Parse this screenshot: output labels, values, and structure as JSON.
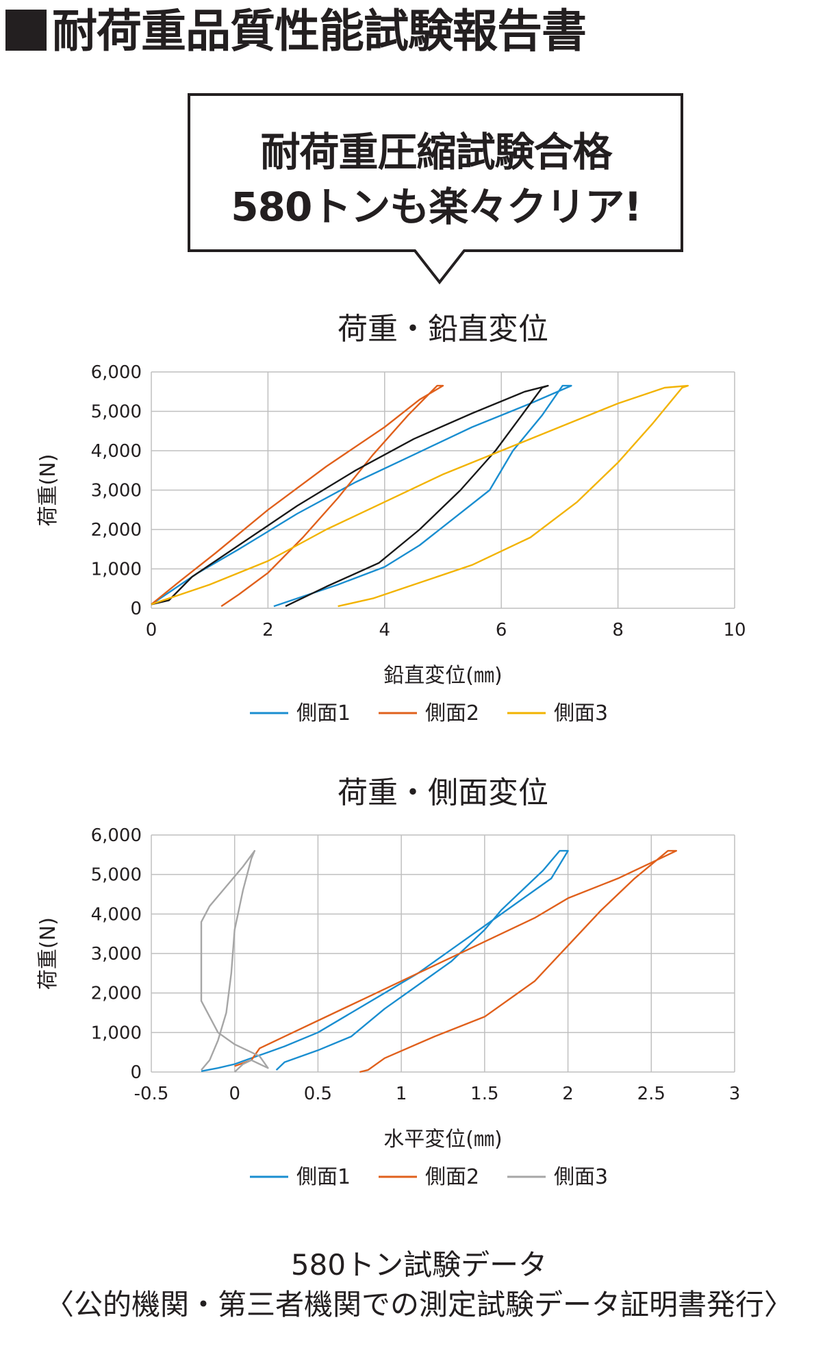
{
  "header": {
    "title": "耐荷重品質性能試験報告書"
  },
  "callout": {
    "line1": "耐荷重圧縮試験合格",
    "line2": "580トンも楽々クリア!"
  },
  "colors": {
    "blue": "#1a8ed0",
    "orange": "#e0601c",
    "gray": "#a6a6a6",
    "yellow": "#f2b300",
    "black": "#1a1a1a",
    "grid": "#bfbfbf"
  },
  "chart_data": [
    {
      "type": "line",
      "title": "荷重・鉛直変位",
      "xlabel": "鉛直変位(㎜)",
      "ylabel": "荷重(N)",
      "xlim": [
        0,
        10
      ],
      "ylim": [
        0,
        6000
      ],
      "x_ticks": [
        "0",
        "2",
        "4",
        "6",
        "8",
        "10"
      ],
      "y_ticks": [
        "0",
        "1,000",
        "2,000",
        "3,000",
        "4,000",
        "5,000",
        "6,000"
      ],
      "grid": true,
      "legend_position": "bottom",
      "series": [
        {
          "name": "側面1",
          "color": "#1a8ed0",
          "legend": true,
          "points": [
            [
              0,
              100
            ],
            [
              0.4,
              500
            ],
            [
              0.8,
              900
            ],
            [
              1.5,
              1500
            ],
            [
              2.5,
              2400
            ],
            [
              3.5,
              3200
            ],
            [
              4.5,
              3900
            ],
            [
              5.5,
              4600
            ],
            [
              6.5,
              5200
            ],
            [
              7.2,
              5650
            ],
            [
              7.05,
              5650
            ],
            [
              6.7,
              4900
            ],
            [
              6.2,
              4000
            ],
            [
              5.8,
              3000
            ],
            [
              5.2,
              2300
            ],
            [
              4.6,
              1600
            ],
            [
              4.0,
              1050
            ],
            [
              3.2,
              600
            ],
            [
              2.1,
              50
            ]
          ]
        },
        {
          "name": "側面2",
          "color": "#e0601c",
          "legend": true,
          "points": [
            [
              0,
              100
            ],
            [
              0.5,
              700
            ],
            [
              1.1,
              1400
            ],
            [
              2.0,
              2500
            ],
            [
              3.0,
              3600
            ],
            [
              4.0,
              4600
            ],
            [
              4.6,
              5300
            ],
            [
              5.0,
              5650
            ],
            [
              4.9,
              5650
            ],
            [
              4.4,
              4900
            ],
            [
              3.8,
              3900
            ],
            [
              3.2,
              2800
            ],
            [
              2.6,
              1800
            ],
            [
              2.0,
              900
            ],
            [
              1.5,
              350
            ],
            [
              1.2,
              50
            ]
          ]
        },
        {
          "name": "側面3",
          "color": "#1a1a1a",
          "legend": false,
          "points": [
            [
              0,
              100
            ],
            [
              0.3,
              200
            ],
            [
              0.7,
              800
            ],
            [
              1.5,
              1600
            ],
            [
              2.5,
              2600
            ],
            [
              3.5,
              3500
            ],
            [
              4.5,
              4300
            ],
            [
              5.5,
              4950
            ],
            [
              6.4,
              5500
            ],
            [
              6.8,
              5650
            ],
            [
              6.7,
              5600
            ],
            [
              6.4,
              5000
            ],
            [
              5.9,
              4000
            ],
            [
              5.3,
              3000
            ],
            [
              4.6,
              2000
            ],
            [
              3.9,
              1150
            ],
            [
              3.0,
              550
            ],
            [
              2.3,
              50
            ]
          ]
        },
        {
          "name": "側面3",
          "color": "#f2b300",
          "legend": true,
          "points": [
            [
              0,
              100
            ],
            [
              1.0,
              600
            ],
            [
              2.0,
              1200
            ],
            [
              3.0,
              2000
            ],
            [
              4.0,
              2700
            ],
            [
              5.0,
              3400
            ],
            [
              6.0,
              4000
            ],
            [
              7.0,
              4600
            ],
            [
              8.0,
              5200
            ],
            [
              8.8,
              5600
            ],
            [
              9.2,
              5650
            ],
            [
              9.1,
              5600
            ],
            [
              8.6,
              4700
            ],
            [
              8.0,
              3700
            ],
            [
              7.3,
              2700
            ],
            [
              6.5,
              1800
            ],
            [
              5.5,
              1100
            ],
            [
              4.5,
              600
            ],
            [
              3.8,
              250
            ],
            [
              3.2,
              50
            ]
          ]
        }
      ]
    },
    {
      "type": "line",
      "title": "荷重・側面変位",
      "xlabel": "水平変位(㎜)",
      "ylabel": "荷重(N)",
      "xlim": [
        -0.5,
        3
      ],
      "ylim": [
        0,
        6000
      ],
      "x_ticks": [
        "-0.5",
        "0",
        "0.5",
        "1",
        "1.5",
        "2",
        "2.5",
        "3"
      ],
      "y_ticks": [
        "0",
        "1,000",
        "2,000",
        "3,000",
        "4,000",
        "5,000",
        "6,000"
      ],
      "grid": true,
      "legend_position": "bottom",
      "series": [
        {
          "name": "側面1",
          "color": "#1a8ed0",
          "legend": true,
          "points": [
            [
              -0.2,
              20
            ],
            [
              -0.1,
              100
            ],
            [
              0,
              200
            ],
            [
              0.1,
              350
            ],
            [
              0.2,
              500
            ],
            [
              0.3,
              650
            ],
            [
              0.5,
              1000
            ],
            [
              0.7,
              1500
            ],
            [
              0.9,
              2000
            ],
            [
              1.1,
              2500
            ],
            [
              1.3,
              3100
            ],
            [
              1.5,
              3700
            ],
            [
              1.7,
              4300
            ],
            [
              1.9,
              4900
            ],
            [
              2.0,
              5600
            ],
            [
              1.95,
              5600
            ],
            [
              1.85,
              5100
            ],
            [
              1.7,
              4500
            ],
            [
              1.6,
              4100
            ],
            [
              1.5,
              3600
            ],
            [
              1.3,
              2800
            ],
            [
              1.1,
              2200
            ],
            [
              0.9,
              1600
            ],
            [
              0.7,
              900
            ],
            [
              0.5,
              550
            ],
            [
              0.3,
              250
            ],
            [
              0.25,
              50
            ]
          ]
        },
        {
          "name": "側面2",
          "color": "#e0601c",
          "legend": true,
          "points": [
            [
              0,
              150
            ],
            [
              0.1,
              300
            ],
            [
              0.15,
              600
            ],
            [
              0.3,
              900
            ],
            [
              0.5,
              1300
            ],
            [
              0.8,
              1900
            ],
            [
              1.1,
              2500
            ],
            [
              1.3,
              2900
            ],
            [
              1.5,
              3300
            ],
            [
              1.8,
              3900
            ],
            [
              2.0,
              4400
            ],
            [
              2.3,
              4900
            ],
            [
              2.5,
              5300
            ],
            [
              2.65,
              5600
            ],
            [
              2.6,
              5600
            ],
            [
              2.4,
              4900
            ],
            [
              2.2,
              4100
            ],
            [
              2.0,
              3200
            ],
            [
              1.8,
              2300
            ],
            [
              1.5,
              1400
            ],
            [
              1.2,
              900
            ],
            [
              0.9,
              350
            ],
            [
              0.8,
              50
            ],
            [
              0.75,
              0
            ]
          ]
        },
        {
          "name": "側面3",
          "color": "#a6a6a6",
          "legend": true,
          "points": [
            [
              0,
              0
            ],
            [
              0.05,
              200
            ],
            [
              0.1,
              300
            ],
            [
              0.2,
              100
            ],
            [
              0.15,
              400
            ],
            [
              0,
              700
            ],
            [
              -0.1,
              1000
            ],
            [
              -0.2,
              1800
            ],
            [
              -0.2,
              2800
            ],
            [
              -0.2,
              3800
            ],
            [
              -0.15,
              4200
            ],
            [
              -0.05,
              4700
            ],
            [
              0.05,
              5200
            ],
            [
              0.12,
              5600
            ],
            [
              0.1,
              5400
            ],
            [
              0.05,
              4600
            ],
            [
              0,
              3600
            ],
            [
              -0.02,
              2500
            ],
            [
              -0.05,
              1500
            ],
            [
              -0.1,
              800
            ],
            [
              -0.15,
              300
            ],
            [
              -0.2,
              50
            ]
          ]
        }
      ]
    }
  ],
  "footer": {
    "line1": "580トン試験データ",
    "line2": "〈公的機関・第三者機関での測定試験データ証明書発行〉"
  }
}
